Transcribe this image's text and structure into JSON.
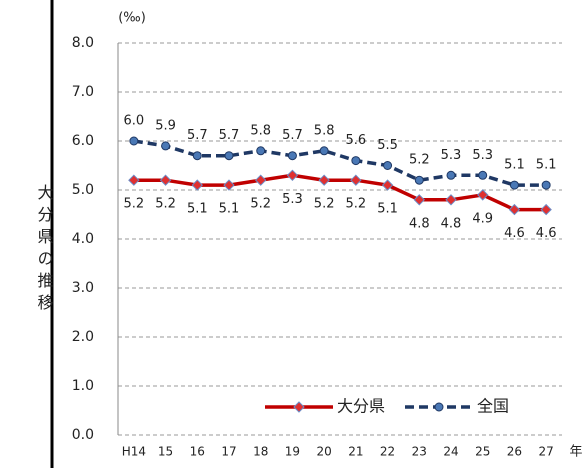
{
  "chart_data": {
    "type": "line",
    "y_label": "大分県の推移",
    "y_unit": "(‰)",
    "x_unit": "年",
    "categories": [
      "H14",
      "15",
      "16",
      "17",
      "18",
      "19",
      "20",
      "21",
      "22",
      "23",
      "24",
      "25",
      "26",
      "27"
    ],
    "series": [
      {
        "name": "大分県",
        "color": "#c00000",
        "marker": "diamond",
        "dashed": false,
        "values": [
          5.2,
          5.2,
          5.1,
          5.1,
          5.2,
          5.3,
          5.2,
          5.2,
          5.1,
          4.8,
          4.8,
          4.9,
          4.6,
          4.6
        ],
        "value_labels": [
          "5.2",
          "5.2",
          "5.1",
          "5.1",
          "5.2",
          "5.3",
          "5.2",
          "5.2",
          "5.1",
          "4.8",
          "4.8",
          "4.9",
          "4.6",
          "4.6"
        ]
      },
      {
        "name": "全国",
        "color": "#1f3864",
        "marker": "circle",
        "dashed": true,
        "values": [
          6.0,
          5.9,
          5.7,
          5.7,
          5.8,
          5.7,
          5.8,
          5.6,
          5.5,
          5.2,
          5.3,
          5.3,
          5.1,
          5.1
        ],
        "value_labels": [
          "6.0",
          "5.9",
          "5.7",
          "5.7",
          "5.8",
          "5.7",
          "5.8",
          "5.6",
          "5.5",
          "5.2",
          "5.3",
          "5.3",
          "5.1",
          "5.1"
        ]
      }
    ],
    "ylim": [
      0,
      8
    ],
    "yticks": [
      {
        "value": 0,
        "label": "0.0"
      },
      {
        "value": 1,
        "label": "1.0"
      },
      {
        "value": 2,
        "label": "2.0"
      },
      {
        "value": 3,
        "label": "3.0"
      },
      {
        "value": 4,
        "label": "4.0"
      },
      {
        "value": 5,
        "label": "5.0"
      },
      {
        "value": 6,
        "label": "6.0"
      },
      {
        "value": 7,
        "label": "7.0"
      },
      {
        "value": 8,
        "label": "8.0"
      }
    ],
    "grid": true
  }
}
